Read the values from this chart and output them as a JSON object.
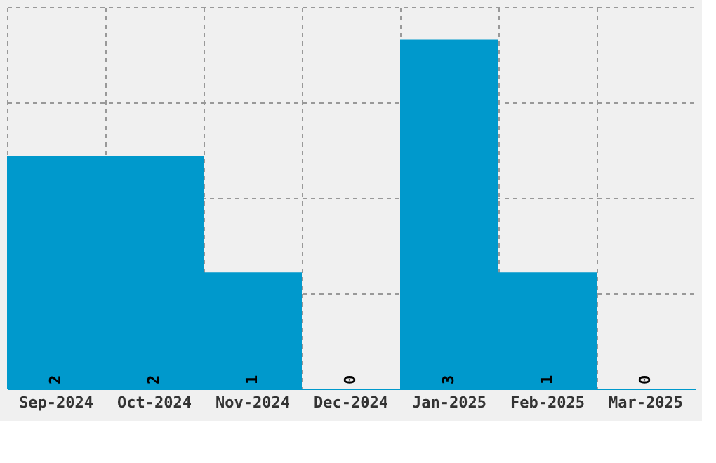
{
  "chart_data": {
    "type": "bar",
    "categories": [
      "Sep-2024",
      "Oct-2024",
      "Nov-2024",
      "Dec-2024",
      "Jan-2025",
      "Feb-2025",
      "Mar-2025"
    ],
    "values": [
      2,
      2,
      1,
      0,
      3,
      1,
      0
    ],
    "color": "#0099cc",
    "data_labels": true,
    "grid": true,
    "tick_labels": "x",
    "ylim": [
      0,
      3.28
    ],
    "yticks": [
      {
        "value": 0,
        "label": null
      },
      {
        "value": 0.82,
        "label": null
      },
      {
        "value": 1.64,
        "label": null
      },
      {
        "value": 2.46,
        "label": null
      },
      {
        "value": 3.28,
        "label": null
      }
    ]
  }
}
